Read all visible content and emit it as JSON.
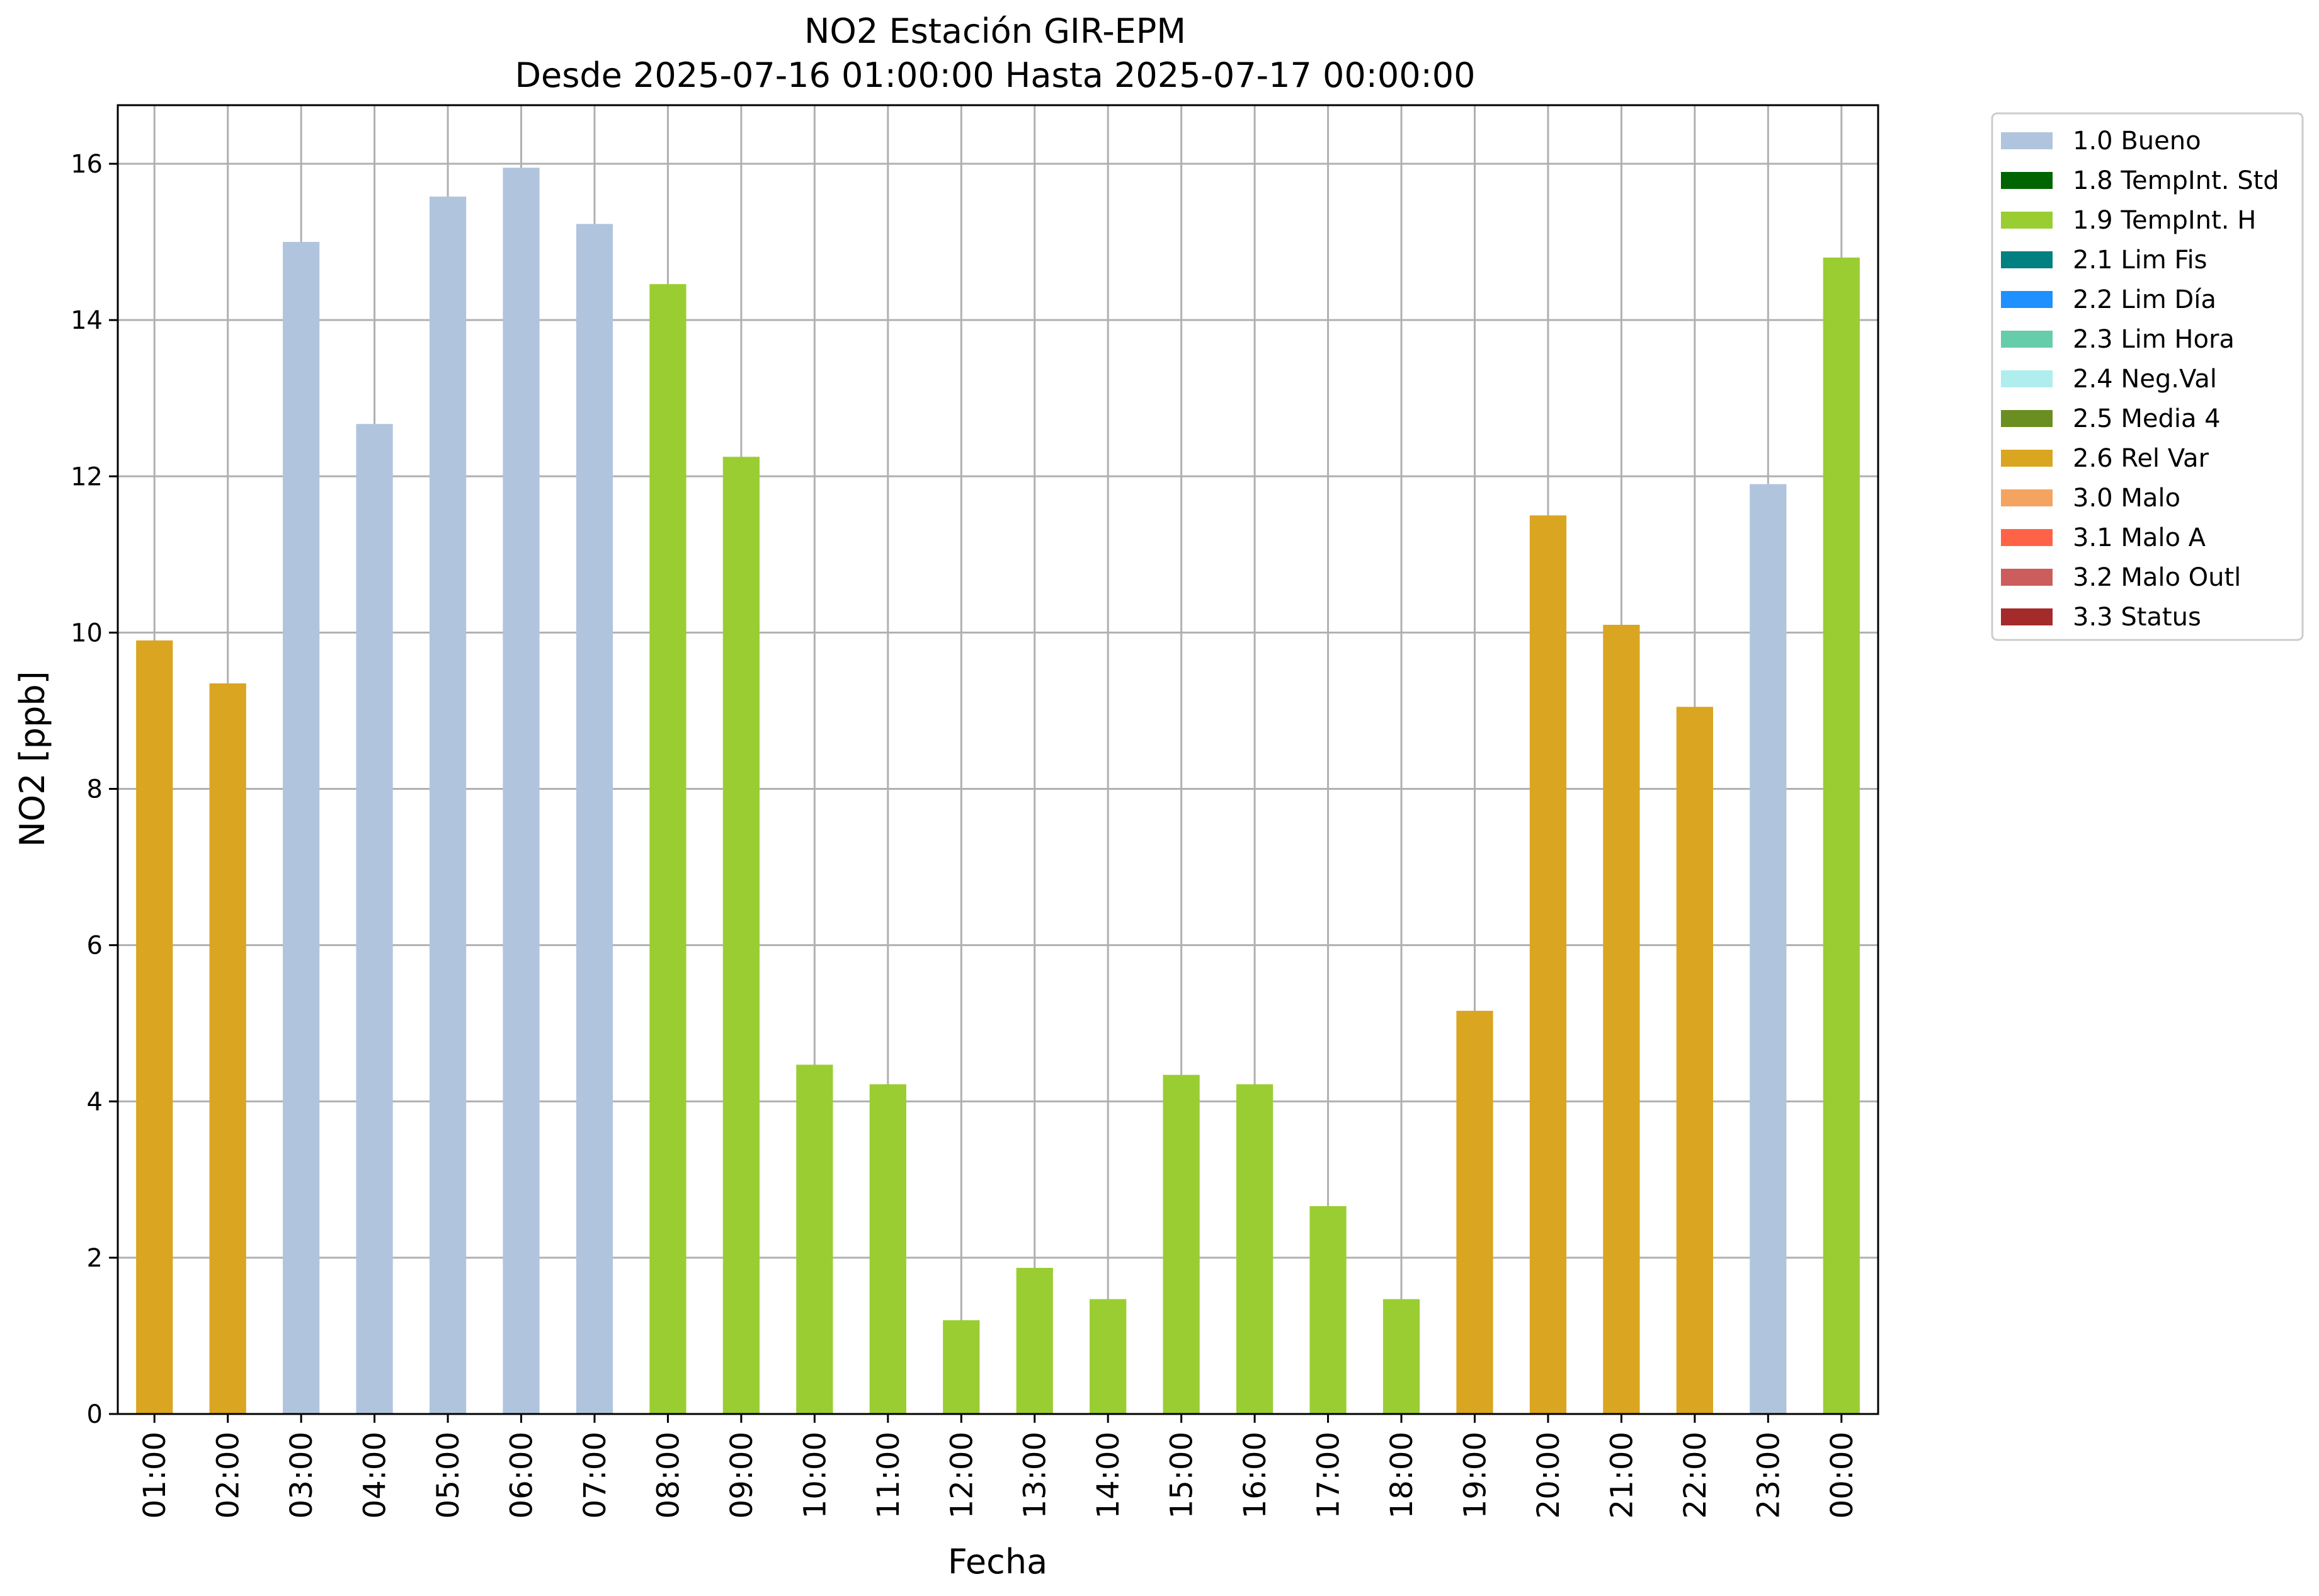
{
  "chart_data": {
    "type": "bar",
    "title": "NO2 Estación GIR-EPM",
    "subtitle": "Desde 2025-07-16 01:00:00 Hasta 2025-07-17 00:00:00",
    "xlabel": "Fecha",
    "ylabel": "NO2 [ppb]",
    "ylim": [
      0,
      16.75
    ],
    "yticks": [
      0,
      2,
      4,
      6,
      8,
      10,
      12,
      14,
      16
    ],
    "grid": true,
    "legend_position": "outside-top-right",
    "categories": [
      "01:00",
      "02:00",
      "03:00",
      "04:00",
      "05:00",
      "06:00",
      "07:00",
      "08:00",
      "09:00",
      "10:00",
      "11:00",
      "12:00",
      "13:00",
      "14:00",
      "15:00",
      "16:00",
      "17:00",
      "18:00",
      "19:00",
      "20:00",
      "21:00",
      "22:00",
      "23:00",
      "00:00"
    ],
    "values": [
      9.9,
      9.35,
      15.0,
      12.67,
      15.58,
      15.95,
      15.23,
      14.46,
      12.25,
      4.47,
      4.22,
      1.2,
      1.87,
      1.47,
      4.34,
      4.22,
      2.66,
      1.47,
      5.16,
      11.5,
      10.1,
      9.05,
      11.9,
      14.8
    ],
    "flags": [
      "2.6 Rel Var",
      "2.6 Rel Var",
      "1.0 Bueno",
      "1.0 Bueno",
      "1.0 Bueno",
      "1.0 Bueno",
      "1.0 Bueno",
      "1.9 TempInt. H",
      "1.9 TempInt. H",
      "1.9 TempInt. H",
      "1.9 TempInt. H",
      "1.9 TempInt. H",
      "1.9 TempInt. H",
      "1.9 TempInt. H",
      "1.9 TempInt. H",
      "1.9 TempInt. H",
      "1.9 TempInt. H",
      "1.9 TempInt. H",
      "2.6 Rel Var",
      "2.6 Rel Var",
      "2.6 Rel Var",
      "2.6 Rel Var",
      "1.0 Bueno",
      "1.9 TempInt. H"
    ],
    "legend": [
      {
        "label": "1.0 Bueno",
        "color": "#b0c4de"
      },
      {
        "label": "1.8 TempInt. Std",
        "color": "#006400"
      },
      {
        "label": "1.9 TempInt. H",
        "color": "#9acd32"
      },
      {
        "label": "2.1 Lim Fis",
        "color": "#008080"
      },
      {
        "label": "2.2 Lim Día",
        "color": "#1e90ff"
      },
      {
        "label": "2.3 Lim Hora",
        "color": "#66cdaa"
      },
      {
        "label": "2.4 Neg.Val",
        "color": "#afeeee"
      },
      {
        "label": "2.5 Media 4",
        "color": "#6b8e23"
      },
      {
        "label": "2.6 Rel Var",
        "color": "#daa520"
      },
      {
        "label": "3.0 Malo",
        "color": "#f4a460"
      },
      {
        "label": "3.1 Malo A",
        "color": "#ff6347"
      },
      {
        "label": "3.2 Malo Outl",
        "color": "#cd5c5c"
      },
      {
        "label": "3.3 Status",
        "color": "#a52a2a"
      }
    ]
  }
}
